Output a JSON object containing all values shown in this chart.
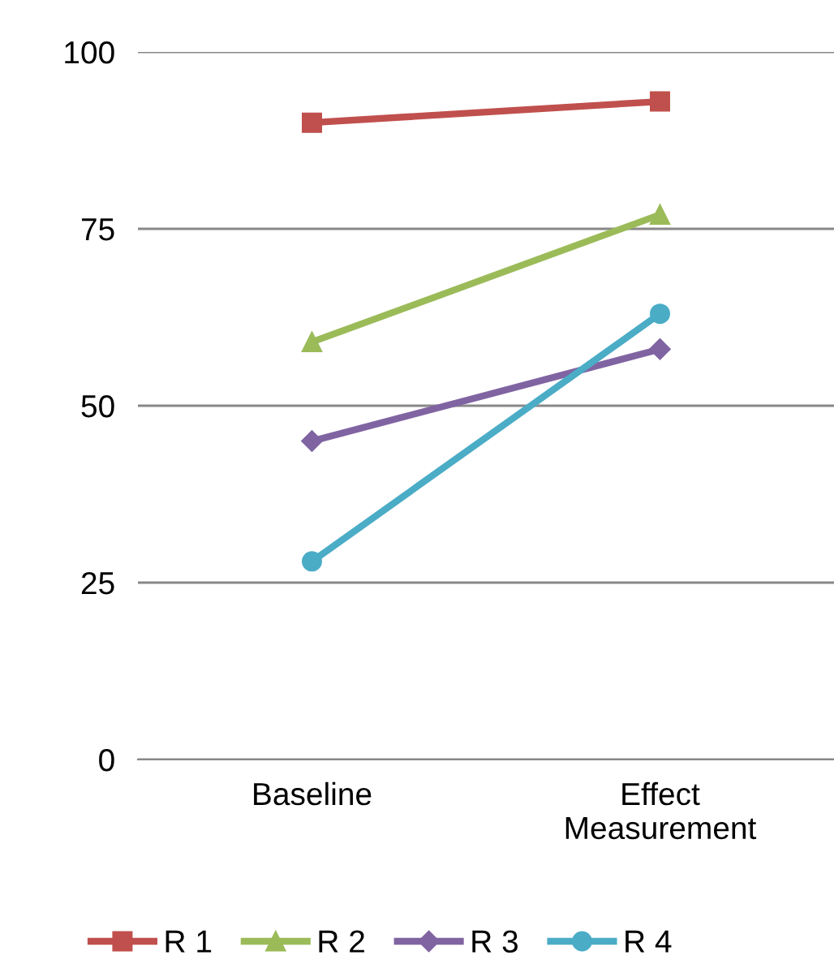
{
  "chart_data": {
    "type": "line",
    "categories": [
      "Baseline",
      "Effect\nMeasurement"
    ],
    "series": [
      {
        "name": "R 1",
        "color": "#c0504d",
        "marker": "square",
        "values": [
          90,
          93
        ]
      },
      {
        "name": "R 2",
        "color": "#9bbb59",
        "marker": "triangle",
        "values": [
          59,
          77
        ]
      },
      {
        "name": "R 3",
        "color": "#8064a2",
        "marker": "diamond",
        "values": [
          45,
          58
        ]
      },
      {
        "name": "R 4",
        "color": "#4bacc6",
        "marker": "circle",
        "values": [
          28,
          63
        ]
      }
    ],
    "ylim": [
      0,
      100
    ],
    "yticks": [
      0,
      25,
      50,
      75,
      100
    ],
    "grid": "y",
    "legend": "bottom"
  }
}
